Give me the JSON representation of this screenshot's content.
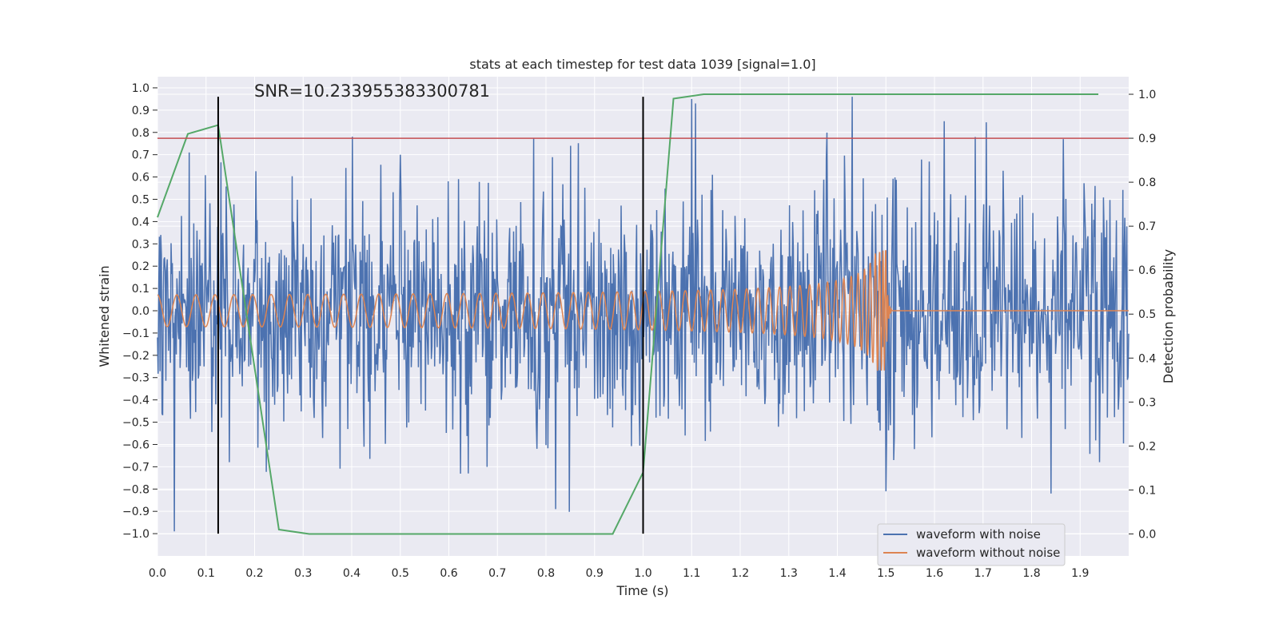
{
  "chart_data": {
    "type": "line",
    "title": "stats at each timestep for test data 1039 [signal=1.0]",
    "annotation": "SNR=10.233955383300781",
    "xlabel": "Time (s)",
    "ylabel": "Whitened strain",
    "ylabel_right": "Detection probability",
    "xlim": [
      0.0,
      2.0
    ],
    "ylim": [
      -1.1,
      1.05
    ],
    "ylim_right": [
      -0.05,
      1.04
    ],
    "x_ticks": [
      "0.0",
      "0.1",
      "0.2",
      "0.3",
      "0.4",
      "0.5",
      "0.6",
      "0.7",
      "0.8",
      "0.9",
      "1.0",
      "1.1",
      "1.2",
      "1.3",
      "1.4",
      "1.5",
      "1.6",
      "1.7",
      "1.8",
      "1.9"
    ],
    "y_ticks": [
      "1.0",
      "0.9",
      "0.8",
      "0.7",
      "0.6",
      "0.5",
      "0.4",
      "0.3",
      "0.2",
      "0.1",
      "0.0",
      "−0.1",
      "−0.2",
      "−0.3",
      "−0.4",
      "−0.5",
      "−0.6",
      "−0.7",
      "−0.8",
      "−0.9",
      "−1.0"
    ],
    "y_ticks_right": [
      "1.0",
      "0.9",
      "0.8",
      "0.7",
      "0.6",
      "0.5",
      "0.4",
      "0.3",
      "0.2",
      "0.1",
      "0.0"
    ],
    "grid": true,
    "legend_position": "bottom-right",
    "series": [
      {
        "name": "waveform with noise",
        "color": "#4c72b0",
        "axis": "left",
        "style": "noisy",
        "x_range": [
          0.0,
          2.0
        ],
        "std": 0.28,
        "peaks": [
          [
            0.035,
            -0.99
          ],
          [
            0.065,
            0.71
          ],
          [
            0.12,
            -0.42
          ],
          [
            0.5,
            0.7
          ],
          [
            0.64,
            -0.73
          ],
          [
            0.82,
            -0.89
          ],
          [
            0.85,
            0.74
          ],
          [
            1.1,
            0.95
          ],
          [
            1.43,
            0.96
          ],
          [
            1.5,
            -0.81
          ],
          [
            1.62,
            0.85
          ],
          [
            1.84,
            -0.82
          ],
          [
            1.93,
            0.56
          ]
        ]
      },
      {
        "name": "waveform without noise",
        "color": "#dd8452",
        "axis": "left",
        "style": "chirp",
        "x_range": [
          0.0,
          2.0
        ],
        "merger_time": 1.5,
        "base_amplitude": 0.055,
        "peak_amplitude": 0.27
      },
      {
        "name": "",
        "color": "#55a868",
        "axis": "right",
        "x": [
          0.0,
          0.0625,
          0.125,
          0.25,
          0.3125,
          0.875,
          0.9375,
          1.0,
          1.0625,
          1.125,
          1.9375
        ],
        "values": [
          0.72,
          0.91,
          0.93,
          0.01,
          0.0,
          0.0,
          0.0,
          0.14,
          0.99,
          1.0,
          1.0
        ]
      }
    ],
    "hlines": [
      {
        "axis": "right",
        "value": 0.9,
        "color": "#c44e52"
      }
    ],
    "vlines": [
      {
        "x": 0.125,
        "color": "#000000"
      },
      {
        "x": 1.0,
        "color": "#000000"
      }
    ]
  }
}
